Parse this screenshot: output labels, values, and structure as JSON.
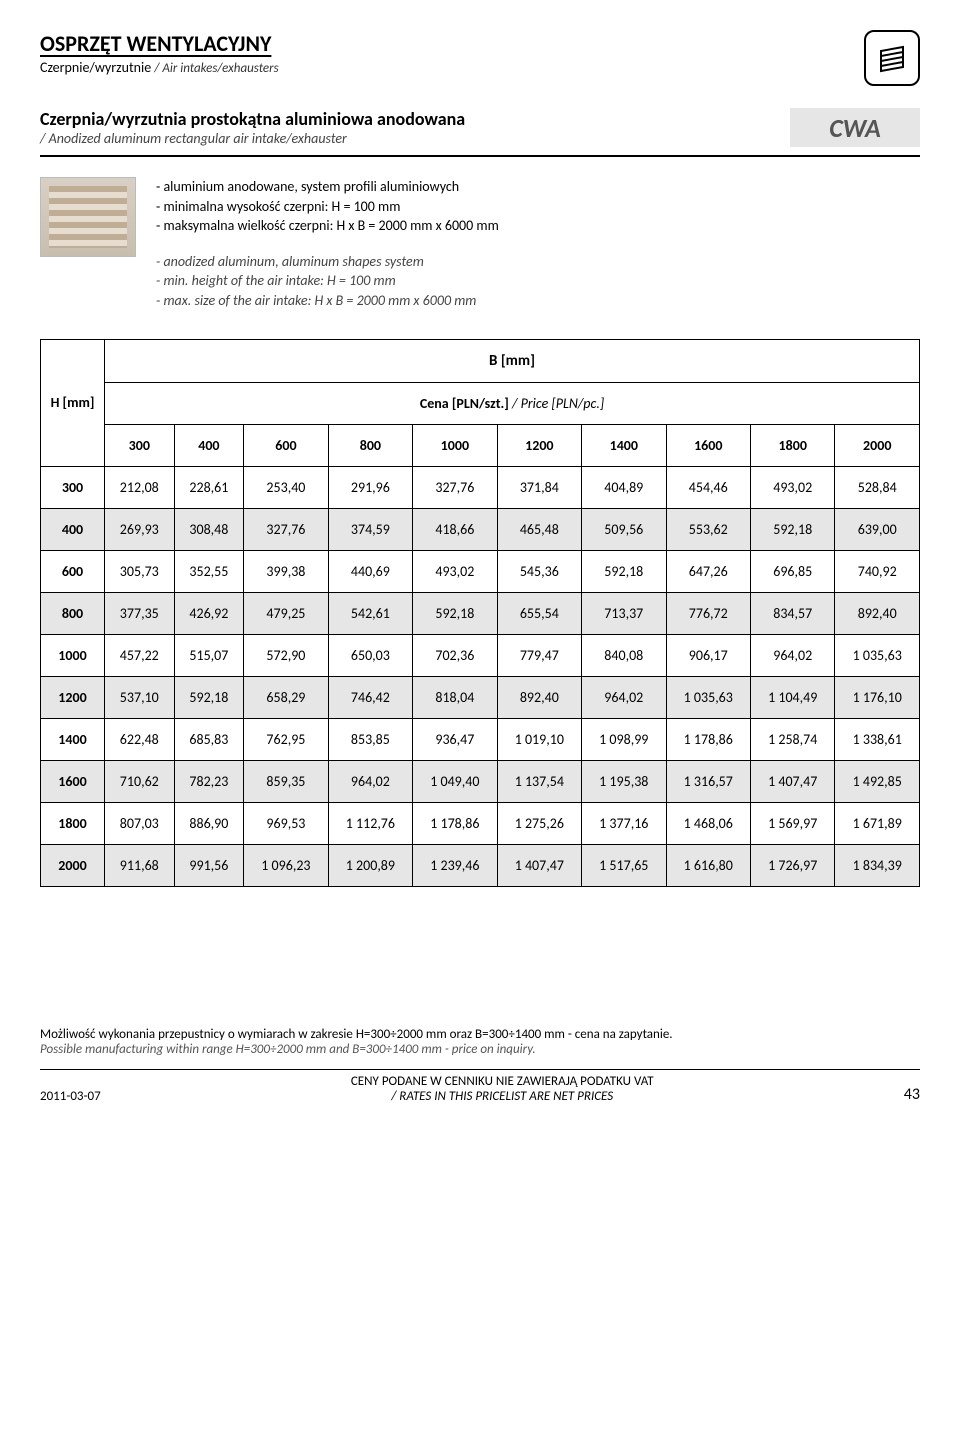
{
  "header": {
    "category_title": "OSPRZĘT WENTYLACYJNY",
    "category_sub_pl": "Czerpnie/wyrzutnie",
    "category_sub_en": "/ Air intakes/exhausters"
  },
  "product": {
    "title": "Czerpnia/wyrzutnia prostokątna aluminiowa anodowana",
    "subtitle": "/ Anodized aluminum rectangular air intake/exhauster",
    "code": "CWA"
  },
  "description": {
    "pl": [
      "- aluminium anodowane, system profili aluminiowych",
      "- minimalna wysokość czerpni: H = 100 mm",
      "- maksymalna wielkość czerpni: H x B = 2000 mm x 6000 mm"
    ],
    "en": [
      "- anodized aluminum, aluminum shapes system",
      "- min. height of the air intake: H = 100 mm",
      "- max. size of the air intake: H x B = 2000 mm x 6000 mm"
    ]
  },
  "table": {
    "h_label": "H [mm]",
    "b_label": "B [mm]",
    "price_label": "Cena [PLN/szt.]",
    "price_label_en": " / Price [PLN/pc.]",
    "col_headers": [
      "300",
      "400",
      "600",
      "800",
      "1000",
      "1200",
      "1400",
      "1600",
      "1800",
      "2000"
    ],
    "rows": [
      {
        "h": "300",
        "shade": false,
        "cells": [
          "212,08",
          "228,61",
          "253,40",
          "291,96",
          "327,76",
          "371,84",
          "404,89",
          "454,46",
          "493,02",
          "528,84"
        ]
      },
      {
        "h": "400",
        "shade": true,
        "cells": [
          "269,93",
          "308,48",
          "327,76",
          "374,59",
          "418,66",
          "465,48",
          "509,56",
          "553,62",
          "592,18",
          "639,00"
        ]
      },
      {
        "h": "600",
        "shade": false,
        "cells": [
          "305,73",
          "352,55",
          "399,38",
          "440,69",
          "493,02",
          "545,36",
          "592,18",
          "647,26",
          "696,85",
          "740,92"
        ]
      },
      {
        "h": "800",
        "shade": true,
        "cells": [
          "377,35",
          "426,92",
          "479,25",
          "542,61",
          "592,18",
          "655,54",
          "713,37",
          "776,72",
          "834,57",
          "892,40"
        ]
      },
      {
        "h": "1000",
        "shade": false,
        "cells": [
          "457,22",
          "515,07",
          "572,90",
          "650,03",
          "702,36",
          "779,47",
          "840,08",
          "906,17",
          "964,02",
          "1 035,63"
        ]
      },
      {
        "h": "1200",
        "shade": true,
        "cells": [
          "537,10",
          "592,18",
          "658,29",
          "746,42",
          "818,04",
          "892,40",
          "964,02",
          "1 035,63",
          "1 104,49",
          "1 176,10"
        ]
      },
      {
        "h": "1400",
        "shade": false,
        "cells": [
          "622,48",
          "685,83",
          "762,95",
          "853,85",
          "936,47",
          "1 019,10",
          "1 098,99",
          "1 178,86",
          "1 258,74",
          "1 338,61"
        ]
      },
      {
        "h": "1600",
        "shade": true,
        "cells": [
          "710,62",
          "782,23",
          "859,35",
          "964,02",
          "1 049,40",
          "1 137,54",
          "1 195,38",
          "1 316,57",
          "1 407,47",
          "1 492,85"
        ]
      },
      {
        "h": "1800",
        "shade": false,
        "cells": [
          "807,03",
          "886,90",
          "969,53",
          "1 112,76",
          "1 178,86",
          "1 275,26",
          "1 377,16",
          "1 468,06",
          "1 569,97",
          "1 671,89"
        ]
      },
      {
        "h": "2000",
        "shade": true,
        "cells": [
          "911,68",
          "991,56",
          "1 096,23",
          "1 200,89",
          "1 239,46",
          "1 407,47",
          "1 517,65",
          "1 616,80",
          "1 726,97",
          "1 834,39"
        ]
      }
    ]
  },
  "footer": {
    "note_pl": "Możliwość wykonania przepustnicy o wymiarach w zakresie H=300÷2000 mm oraz B=300÷1400 mm - cena na zapytanie.",
    "note_en": "Possible manufacturing within range H=300÷2000 mm and B=300÷1400 mm - price on inquiry.",
    "date": "2011-03-07",
    "vat_pl": "CENY PODANE W CENNIKU NIE ZAWIERAJĄ PODATKU VAT",
    "vat_en": "/ RATES IN THIS PRICELIST ARE NET PRICES",
    "page": "43"
  },
  "colors": {
    "shade": "#e6e6e6",
    "border": "#000000"
  }
}
